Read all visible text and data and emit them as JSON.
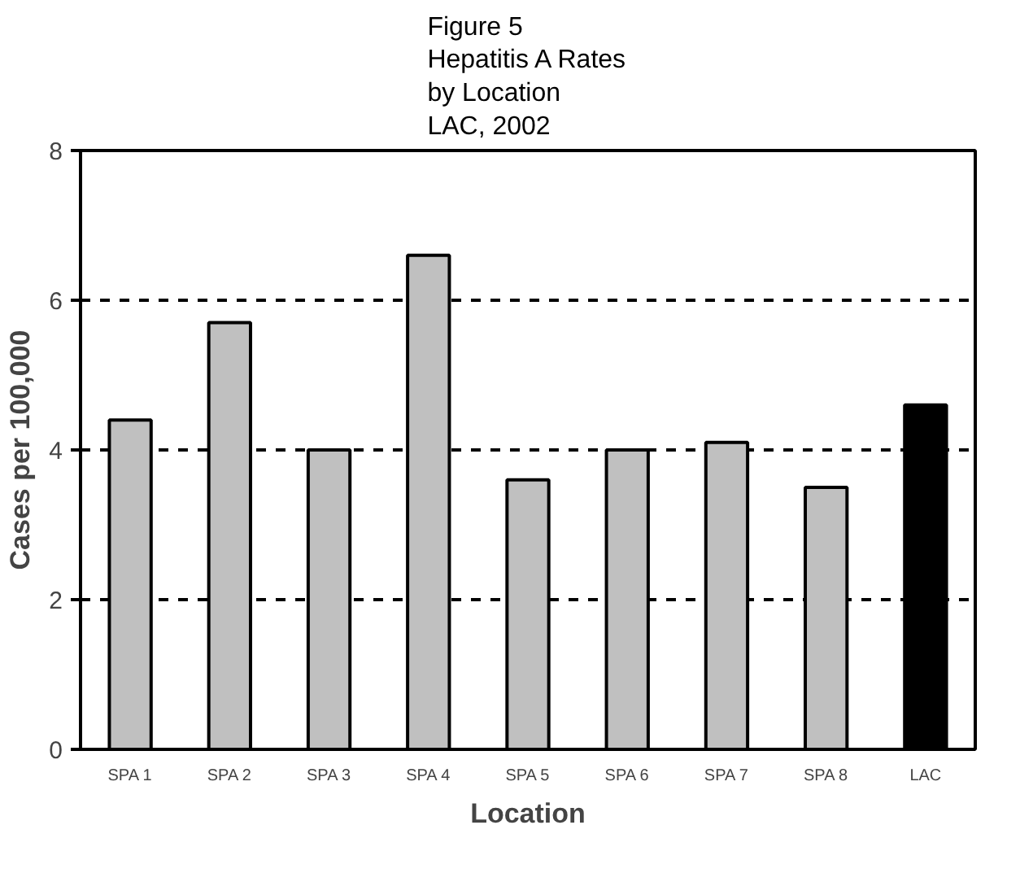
{
  "chart_data": {
    "type": "bar",
    "title": "Figure 5\nHepatitis A Rates\nby Location\nLAC, 2002",
    "xlabel": "Location",
    "ylabel": "Cases per 100,000",
    "categories": [
      "SPA 1",
      "SPA 2",
      "SPA 3",
      "SPA 4",
      "SPA 5",
      "SPA 6",
      "SPA 7",
      "SPA 8",
      "LAC"
    ],
    "values": [
      4.4,
      5.7,
      4.0,
      6.6,
      3.6,
      4.0,
      4.1,
      3.5,
      4.6
    ],
    "colors": [
      "#c0c0c0",
      "#c0c0c0",
      "#c0c0c0",
      "#c0c0c0",
      "#c0c0c0",
      "#c0c0c0",
      "#c0c0c0",
      "#c0c0c0",
      "#000000"
    ],
    "ylim": [
      0,
      8
    ],
    "yticks": [
      0,
      2,
      4,
      6,
      8
    ],
    "grid": "y",
    "line_style": "dashed"
  }
}
